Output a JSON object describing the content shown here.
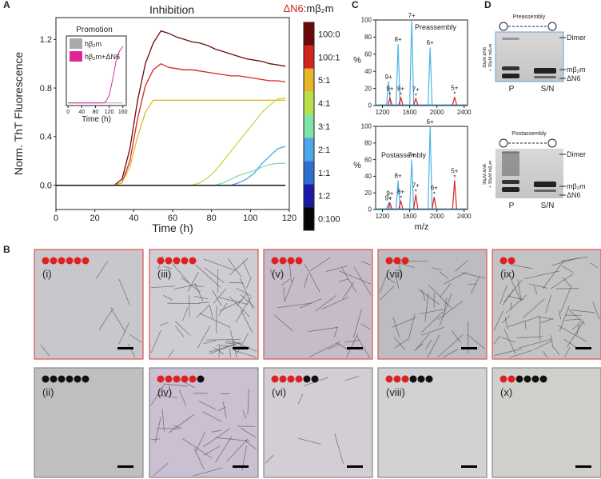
{
  "panels": {
    "a": "A",
    "b": "B",
    "c": "C",
    "d": "D"
  },
  "chart_data": [
    {
      "type": "line",
      "title": "Inhibition",
      "xlabel": "Time (h)",
      "ylabel": "Norm. ThT Fluorescence",
      "legend": "colorbar",
      "colorbar_title": [
        "ΔN6",
        ":mβ₂m"
      ],
      "xlim": [
        0,
        120
      ],
      "ylim": [
        -0.2,
        1.38
      ],
      "xticks": [
        0,
        20,
        40,
        60,
        80,
        100,
        120
      ],
      "yticks": [
        {
          "value": 0,
          "label": "0.0"
        },
        0.4,
        0.8,
        1.2
      ],
      "grid": false,
      "x": [
        0,
        10,
        20,
        30,
        34,
        38,
        42,
        46,
        50,
        54,
        58,
        62,
        66,
        70,
        74,
        78,
        82,
        86,
        90,
        94,
        98,
        102,
        106,
        110,
        114,
        118
      ],
      "series": [
        {
          "name": "100:0",
          "color": "#6b0a0a",
          "values": [
            0,
            0,
            0,
            0,
            0.05,
            0.3,
            0.7,
            1.0,
            1.17,
            1.27,
            1.25,
            1.22,
            1.2,
            1.18,
            1.17,
            1.15,
            1.12,
            1.1,
            1.08,
            1.06,
            1.04,
            1.03,
            1.02,
            1.0,
            0.99,
            0.98
          ]
        },
        {
          "name": "100:1",
          "color": "#d4251c",
          "values": [
            0,
            0,
            0,
            0,
            0.02,
            0.2,
            0.55,
            0.82,
            0.95,
            1.0,
            0.97,
            0.96,
            0.95,
            0.95,
            0.94,
            0.93,
            0.92,
            0.91,
            0.9,
            0.9,
            0.89,
            0.88,
            0.87,
            0.86,
            0.86,
            0.85
          ]
        },
        {
          "name": "5:1",
          "color": "#e8b526",
          "values": [
            0,
            0,
            0,
            0,
            0.02,
            0.15,
            0.4,
            0.6,
            0.7,
            0.7,
            0.7,
            0.7,
            0.7,
            0.7,
            0.7,
            0.7,
            0.7,
            0.7,
            0.7,
            0.7,
            0.7,
            0.7,
            0.7,
            0.7,
            0.7,
            0.7
          ]
        },
        {
          "name": "4:1",
          "color": "#b7e04a",
          "values": [
            0,
            0,
            0,
            0,
            0,
            0,
            0,
            0,
            0,
            0,
            0,
            0,
            0,
            0,
            0.02,
            0.06,
            0.12,
            0.2,
            0.28,
            0.36,
            0.44,
            0.52,
            0.6,
            0.66,
            0.71,
            0.72
          ]
        },
        {
          "name": "3:1",
          "color": "#7fe3a6",
          "values": [
            0,
            0,
            0,
            0,
            0,
            0,
            0,
            0,
            0,
            0,
            0,
            0,
            0,
            0,
            0,
            0,
            0,
            0.02,
            0.05,
            0.08,
            0.1,
            0.12,
            0.15,
            0.17,
            0.18,
            0.18
          ]
        },
        {
          "name": "2:1",
          "color": "#4da6e8",
          "values": [
            0,
            0,
            0,
            0,
            0,
            0,
            0,
            0,
            0,
            0,
            0,
            0,
            0,
            0,
            0,
            0,
            0,
            0,
            0,
            0.02,
            0.05,
            0.1,
            0.18,
            0.24,
            0.3,
            0.32
          ]
        },
        {
          "name": "1:1",
          "color": "#2e6fd0",
          "values": [
            0,
            0,
            0,
            0,
            0,
            0,
            0,
            0,
            0,
            0,
            0,
            0,
            0,
            0,
            0,
            0,
            0,
            0,
            0,
            0,
            0,
            0,
            0,
            0,
            0,
            0
          ]
        },
        {
          "name": "1:2",
          "color": "#1d1aa8",
          "values": [
            0,
            0,
            0,
            0,
            0,
            0,
            0,
            0,
            0,
            0,
            0,
            0,
            0,
            0,
            0,
            0,
            0,
            0,
            0,
            0,
            0,
            0,
            0,
            0,
            0,
            0
          ]
        },
        {
          "name": "0:100",
          "color": "#050505",
          "values": [
            0,
            0,
            0,
            0,
            0,
            0,
            0,
            0,
            0,
            0,
            0,
            0,
            0,
            0,
            0,
            0,
            0,
            0,
            0,
            0,
            0,
            0,
            0,
            0,
            0,
            0
          ]
        }
      ]
    },
    {
      "type": "line",
      "title": "Promotion",
      "xlabel": "Time (h)",
      "legend": "upper left",
      "xlim": [
        -5,
        170
      ],
      "ylim": [
        -0.05,
        1.3
      ],
      "xticks": [
        0,
        40,
        80,
        120,
        160
      ],
      "yticks": [],
      "x": [
        0,
        20,
        40,
        60,
        80,
        100,
        110,
        120,
        130,
        140,
        150,
        160
      ],
      "series": [
        {
          "name": "hβ₂m",
          "color": "#aaaaaa",
          "values": [
            0,
            0,
            0,
            0,
            0,
            0,
            0,
            0,
            0,
            0,
            0,
            0
          ]
        },
        {
          "name": "hβ₂m+ΔN6",
          "color": "#e0259a",
          "values": [
            0,
            0,
            0,
            0,
            0,
            0,
            0.02,
            0.15,
            0.45,
            0.8,
            1.0,
            1.1
          ]
        }
      ]
    },
    {
      "type": "spectrum",
      "title": "Preassembly",
      "ylabel": "%",
      "xlim": [
        1100,
        2450
      ],
      "ylim": [
        0,
        100
      ],
      "xticks": [
        1200,
        1600,
        2000,
        2400
      ],
      "yticks": [
        0,
        20,
        40,
        60,
        80,
        100
      ],
      "series": [
        {
          "color": "#4db3e6",
          "x": [
            1290,
            1430,
            1630,
            1900
          ],
          "values": [
            28,
            72,
            100,
            68
          ],
          "peak_labels": [
            "9+",
            "8+",
            "7+",
            "6+"
          ]
        },
        {
          "color": "#e02020",
          "marker": "*",
          "x": [
            1310,
            1470,
            1690,
            2260
          ],
          "values": [
            9,
            9,
            8,
            10
          ],
          "peak_labels": [
            "9+",
            "8+",
            "7+",
            "5+"
          ]
        }
      ]
    },
    {
      "type": "spectrum",
      "title": "Postassembly",
      "ylabel": "%",
      "xlabel": "m/z",
      "xlim": [
        1100,
        2450
      ],
      "ylim": [
        0,
        100
      ],
      "xticks": [
        1200,
        1600,
        2000,
        2400
      ],
      "yticks": [
        0,
        20,
        40,
        60,
        80,
        100
      ],
      "series": [
        {
          "color": "#4db3e6",
          "x": [
            1290,
            1430,
            1630,
            1900
          ],
          "values": [
            8,
            35,
            60,
            100
          ],
          "peak_labels": [
            "9+",
            "8+",
            "7+",
            "6+"
          ]
        },
        {
          "color": "#e02020",
          "marker": "*",
          "x": [
            1310,
            1470,
            1690,
            1960,
            2260
          ],
          "values": [
            8,
            10,
            18,
            15,
            35
          ],
          "peak_labels": [
            "9+",
            "8+",
            "7+",
            "6+",
            "5+"
          ]
        }
      ]
    }
  ],
  "gels": [
    {
      "title": "Preassembly",
      "sample": [
        "30μM ΔN6",
        "+ 30μM mβ₂m"
      ],
      "bands": [
        "Dimer",
        "mβ₂m",
        "ΔN6"
      ],
      "lanes": [
        "P",
        "S/N"
      ]
    },
    {
      "title": "Postassembly",
      "sample": [
        "30μM ΔN6",
        "+ 30μM mβ₂m"
      ],
      "bands": [
        "Dimer",
        "mβ₂m",
        "ΔN6"
      ],
      "lanes": [
        "P",
        "S/N"
      ]
    }
  ],
  "micrographs": [
    {
      "label": "(i)",
      "red": 6,
      "black": 0
    },
    {
      "label": "(iii)",
      "red": 5,
      "black": 0
    },
    {
      "label": "(v)",
      "red": 4,
      "black": 0
    },
    {
      "label": "(vii)",
      "red": 3,
      "black": 0
    },
    {
      "label": "(ix)",
      "red": 2,
      "black": 0
    },
    {
      "label": "(ii)",
      "red": 0,
      "black": 6
    },
    {
      "label": "(iv)",
      "red": 5,
      "black": 1
    },
    {
      "label": "(vi)",
      "red": 4,
      "black": 2
    },
    {
      "label": "(viii)",
      "red": 3,
      "black": 3
    },
    {
      "label": "(x)",
      "red": 2,
      "black": 4
    }
  ]
}
